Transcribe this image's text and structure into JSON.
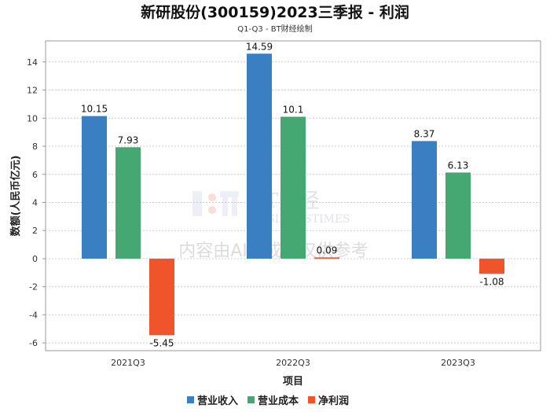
{
  "chart_data": {
    "type": "bar",
    "title": "新研股份(300159)2023三季报 - 利润",
    "subtitle": "Q1-Q3 - BT财经绘制",
    "xlabel": "项目",
    "ylabel": "数额(人民币亿元)",
    "categories": [
      "2021Q3",
      "2022Q3",
      "2023Q3"
    ],
    "series": [
      {
        "name": "营业收入",
        "color": "#3a7fc1",
        "values": [
          10.15,
          14.59,
          8.37
        ]
      },
      {
        "name": "营业成本",
        "color": "#45a872",
        "values": [
          7.93,
          10.1,
          6.13
        ]
      },
      {
        "name": "净利润",
        "color": "#f0542a",
        "values": [
          -5.45,
          0.09,
          -1.08
        ]
      }
    ],
    "value_labels": [
      [
        "10.15",
        "14.59",
        "8.37"
      ],
      [
        "7.93",
        "10.1",
        "6.13"
      ],
      [
        "-5.45",
        "0.09",
        "-1.08"
      ]
    ],
    "ylim": [
      -6.55,
      15.5
    ],
    "yticks": [
      -6,
      -4,
      -2,
      0,
      2,
      4,
      6,
      8,
      10,
      12,
      14
    ],
    "grid": true,
    "legend": "bottom-center",
    "watermark": {
      "brand": "BT财经",
      "brand_en": "BUSINESSTIMES",
      "notice": "内容由AI生成，仅供参考"
    }
  }
}
